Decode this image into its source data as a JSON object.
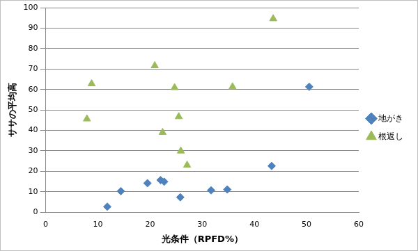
{
  "chart_data": {
    "type": "scatter",
    "x_label": "光条件（RPFD%）",
    "y_label": "ササの平均高",
    "series": [
      {
        "name": "地がき",
        "color": "#4f81bd",
        "marker": "diamond",
        "x": [
          11.8,
          14.4,
          19.5,
          22.0,
          22.7,
          25.8,
          31.7,
          34.8,
          43.3,
          50.5
        ],
        "values": [
          2.7,
          10.3,
          14.2,
          15.7,
          14.9,
          7.3,
          10.7,
          11.1,
          22.6,
          61.3
        ]
      },
      {
        "name": "根返し",
        "color": "#9bbb59",
        "marker": "triangle",
        "x": [
          7.9,
          8.8,
          20.9,
          24.7,
          25.5,
          22.4,
          25.9,
          27.1,
          35.8,
          43.6
        ],
        "values": [
          45.6,
          62.8,
          71.6,
          60.9,
          46.7,
          39.0,
          29.9,
          23.0,
          61.3,
          94.6
        ]
      }
    ],
    "xlim": [
      0,
      60
    ],
    "xticks": [
      0,
      10,
      20,
      30,
      40,
      50,
      60
    ],
    "ylim": [
      0,
      100
    ],
    "yticks": [
      0,
      10,
      20,
      30,
      40,
      50,
      60,
      70,
      80,
      90,
      100
    ],
    "grid": true,
    "legend": "right"
  }
}
